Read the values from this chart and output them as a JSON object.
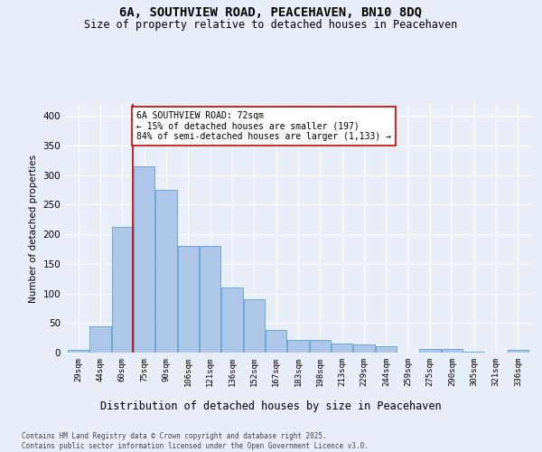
{
  "title_line1": "6A, SOUTHVIEW ROAD, PEACEHAVEN, BN10 8DQ",
  "title_line2": "Size of property relative to detached houses in Peacehaven",
  "xlabel": "Distribution of detached houses by size in Peacehaven",
  "ylabel": "Number of detached properties",
  "categories": [
    "29sqm",
    "44sqm",
    "60sqm",
    "75sqm",
    "90sqm",
    "106sqm",
    "121sqm",
    "136sqm",
    "152sqm",
    "167sqm",
    "183sqm",
    "198sqm",
    "213sqm",
    "229sqm",
    "244sqm",
    "259sqm",
    "275sqm",
    "290sqm",
    "305sqm",
    "321sqm",
    "336sqm"
  ],
  "values": [
    5,
    44,
    212,
    315,
    275,
    180,
    180,
    110,
    90,
    38,
    22,
    22,
    15,
    13,
    10,
    0,
    6,
    6,
    1,
    0,
    4
  ],
  "bar_color": "#aec6e8",
  "bar_edge_color": "#5a9fd4",
  "vline_color": "#cc0000",
  "vline_x": 2.5,
  "annotation_text": "6A SOUTHVIEW ROAD: 72sqm\n← 15% of detached houses are smaller (197)\n84% of semi-detached houses are larger (1,133) →",
  "annotation_box_color": "#ffffff",
  "annotation_box_edge_color": "#cc0000",
  "annotation_fontsize": 7,
  "footer_text": "Contains HM Land Registry data © Crown copyright and database right 2025.\nContains public sector information licensed under the Open Government Licence v3.0.",
  "bg_color": "#e8eef7",
  "ylim": [
    0,
    420
  ],
  "yticks": [
    0,
    50,
    100,
    150,
    200,
    250,
    300,
    350,
    400
  ],
  "title1_fontsize": 10,
  "title2_fontsize": 8.5,
  "xlabel_fontsize": 8.5,
  "ylabel_fontsize": 7.5,
  "ytick_fontsize": 7.5,
  "xtick_fontsize": 6.5,
  "footer_fontsize": 5.5
}
